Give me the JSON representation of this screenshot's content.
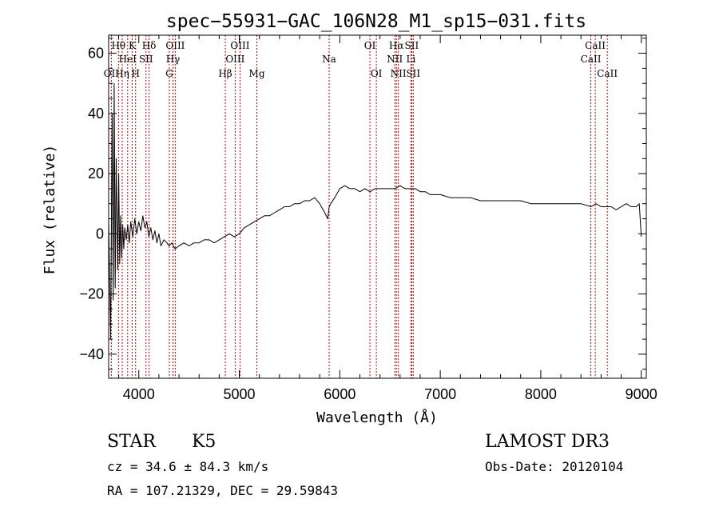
{
  "chart_data": {
    "type": "line",
    "title": "spec−55931−GAC_106N28_M1_sp15−031.fits",
    "xlabel": "Wavelength (Å)",
    "ylabel": "Flux (relative)",
    "xlim": [
      3700,
      9050
    ],
    "ylim": [
      -48,
      66
    ],
    "xticks": [
      4000,
      5000,
      6000,
      7000,
      8000,
      9000
    ],
    "xtick_labels": [
      "4000",
      "5000",
      "6000",
      "7000",
      "8000",
      "9000"
    ],
    "yticks": [
      -40,
      -20,
      0,
      20,
      40,
      60
    ],
    "ytick_labels": [
      "−40",
      "−20",
      "0",
      "20",
      "40",
      "60"
    ],
    "grid": false,
    "series": [
      {
        "name": "spectrum",
        "color": "#000000",
        "x": [
          3700,
          3720,
          3735,
          3745,
          3755,
          3765,
          3775,
          3790,
          3800,
          3810,
          3820,
          3830,
          3840,
          3850,
          3860,
          3875,
          3890,
          3905,
          3920,
          3940,
          3960,
          3980,
          4000,
          4020,
          4040,
          4060,
          4080,
          4100,
          4120,
          4140,
          4160,
          4180,
          4200,
          4220,
          4250,
          4280,
          4300,
          4330,
          4360,
          4400,
          4450,
          4500,
          4550,
          4600,
          4650,
          4700,
          4750,
          4800,
          4850,
          4900,
          4950,
          5000,
          5050,
          5100,
          5150,
          5200,
          5250,
          5300,
          5350,
          5400,
          5450,
          5500,
          5550,
          5600,
          5650,
          5700,
          5750,
          5800,
          5850,
          5880,
          5895,
          5910,
          5950,
          6000,
          6050,
          6100,
          6150,
          6200,
          6250,
          6300,
          6350,
          6400,
          6450,
          6500,
          6550,
          6600,
          6650,
          6700,
          6750,
          6800,
          6850,
          6900,
          6950,
          7000,
          7100,
          7200,
          7300,
          7400,
          7500,
          7600,
          7700,
          7800,
          7900,
          8000,
          8100,
          8200,
          8300,
          8400,
          8500,
          8550,
          8600,
          8650,
          8700,
          8750,
          8800,
          8850,
          8900,
          8950,
          8980,
          9000
        ],
        "values": [
          5,
          -35,
          40,
          -22,
          50,
          -18,
          25,
          -12,
          20,
          -10,
          6,
          -8,
          3,
          -5,
          2,
          -2,
          3,
          -3,
          4,
          -1,
          5,
          0,
          4,
          1,
          6,
          2,
          4,
          -1,
          2,
          -2,
          1,
          -3,
          0,
          -4,
          -2,
          -3,
          -4,
          -3,
          -5,
          -4,
          -3,
          -4,
          -3,
          -3,
          -2,
          -2,
          -3,
          -2,
          -1,
          0,
          -1,
          0,
          2,
          3,
          4,
          5,
          6,
          6,
          7,
          8,
          9,
          9,
          10,
          10,
          11,
          11,
          12,
          10,
          7,
          5,
          9,
          10,
          12,
          15,
          16,
          15,
          15,
          14,
          15,
          14,
          15,
          15,
          15,
          15,
          15,
          16,
          15,
          15,
          15,
          14,
          14,
          13,
          13,
          13,
          12,
          12,
          12,
          11,
          11,
          11,
          11,
          11,
          10,
          10,
          10,
          10,
          10,
          10,
          9,
          10,
          9,
          9,
          9,
          8,
          9,
          10,
          9,
          9,
          10,
          -1
        ]
      }
    ],
    "lines": [
      {
        "name": "OII",
        "x": 3727,
        "label_row": 3,
        "color": "#cc0000"
      },
      {
        "name": "Hθ",
        "x": 3798,
        "label_row": 1,
        "color": "#cc0000"
      },
      {
        "name": "Hη",
        "x": 3835,
        "label_row": 3,
        "color": "#cc0000"
      },
      {
        "name": "HeI",
        "x": 3889,
        "label_row": 2,
        "color": "#cc0000"
      },
      {
        "name": "K",
        "x": 3934,
        "label_row": 1,
        "color": "#cc0000"
      },
      {
        "name": "H",
        "x": 3968,
        "label_row": 3,
        "color": "#cc0000"
      },
      {
        "name": "SII",
        "x": 4072,
        "label_row": 2,
        "color": "#cc0000"
      },
      {
        "name": "Hδ",
        "x": 4102,
        "label_row": 1,
        "color": "#cc0000"
      },
      {
        "name": "G",
        "x": 4304,
        "label_row": 3,
        "color": "#cc0000"
      },
      {
        "name": "Hγ",
        "x": 4340,
        "label_row": 2,
        "color": "#cc0000"
      },
      {
        "name": "OIII",
        "x": 4363,
        "label_row": 1,
        "color": "#cc0000"
      },
      {
        "name": "Hβ",
        "x": 4861,
        "label_row": 3,
        "color": "#cc0000"
      },
      {
        "name": "OIII",
        "x": 4959,
        "label_row": 2,
        "color": "#cc0000"
      },
      {
        "name": "OIII",
        "x": 5007,
        "label_row": 1,
        "color": "#cc0000"
      },
      {
        "name": "Mg",
        "x": 5175,
        "label_row": 3,
        "color": "#cc0000"
      },
      {
        "name": "Na",
        "x": 5894,
        "label_row": 2,
        "color": "#cc0000"
      },
      {
        "name": "OI",
        "x": 6300,
        "label_row": 1,
        "color": "#cc0000"
      },
      {
        "name": "OI",
        "x": 6364,
        "label_row": 3,
        "color": "#cc0000"
      },
      {
        "name": "NII",
        "x": 6548,
        "label_row": 2,
        "color": "#cc0000"
      },
      {
        "name": "Hα",
        "x": 6563,
        "label_row": 1,
        "color": "#cc0000"
      },
      {
        "name": "NII",
        "x": 6583,
        "label_row": 3,
        "color": "#cc0000"
      },
      {
        "name": "Li",
        "x": 6708,
        "label_row": 2,
        "color": "#cc0000"
      },
      {
        "name": "SII",
        "x": 6716,
        "label_row": 1,
        "color": "#cc0000"
      },
      {
        "name": "SII",
        "x": 6731,
        "label_row": 3,
        "color": "#cc0000"
      },
      {
        "name": "CaII",
        "x": 8498,
        "label_row": 2,
        "color": "#cc0000"
      },
      {
        "name": "CaII",
        "x": 8542,
        "label_row": 1,
        "color": "#cc0000"
      },
      {
        "name": "CaII",
        "x": 8662,
        "label_row": 3,
        "color": "#cc0000"
      }
    ]
  },
  "info": {
    "class": "STAR",
    "subclass": "K5",
    "survey": "LAMOST DR3",
    "cz": "cz = 34.6 ± 84.3 km/s",
    "obs_date": "Obs-Date: 20120104",
    "coords": "RA = 107.21329, DEC =  29.59843"
  }
}
